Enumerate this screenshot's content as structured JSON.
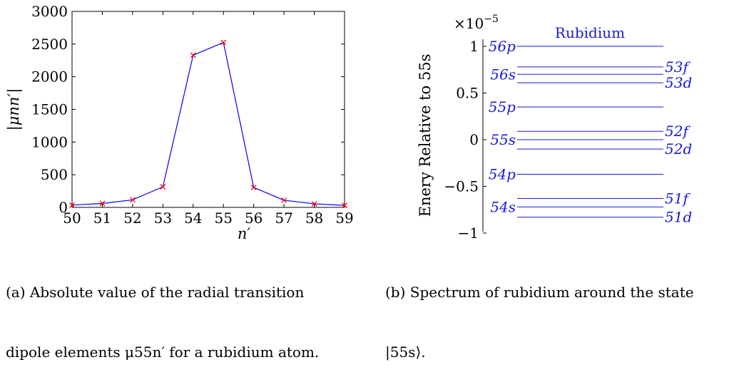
{
  "chart_data": [
    {
      "type": "line",
      "xlabel": "n′",
      "ylabel": "|μnn′|",
      "xlim": [
        50,
        59
      ],
      "ylim": [
        0,
        3000
      ],
      "x_ticks": [
        "50",
        "51",
        "52",
        "53",
        "54",
        "55",
        "56",
        "57",
        "58",
        "59"
      ],
      "y_ticks": [
        "0",
        "500",
        "1000",
        "1500",
        "2000",
        "2500",
        "3000"
      ],
      "grid": false,
      "line_color": "#0000ff",
      "marker_color": "#ff0000",
      "marker": "x",
      "series": [
        {
          "x": [
            50,
            51,
            52,
            53,
            54,
            55,
            56,
            57,
            58,
            59
          ],
          "values": [
            35,
            60,
            115,
            315,
            2330,
            2525,
            305,
            110,
            55,
            30
          ]
        }
      ]
    },
    {
      "type": "energy-levels",
      "title": "Rubidium",
      "ylabel": "Enery Relative to 55s",
      "exponent_label": "×10",
      "exponent_power": "−5",
      "ylim": [
        -1,
        1.1
      ],
      "y_ticks": [
        "1",
        "0.5",
        "0",
        "−0.5",
        "−1"
      ],
      "y_tick_values": [
        1,
        0.5,
        0,
        -0.5,
        -1
      ],
      "line_color": "#1a1ad8",
      "levels": [
        {
          "label": "56p",
          "energy": 1.0,
          "side": "left"
        },
        {
          "label": "53f",
          "energy": 0.78,
          "side": "right"
        },
        {
          "label": "56s",
          "energy": 0.7,
          "side": "left"
        },
        {
          "label": "53d",
          "energy": 0.61,
          "side": "right"
        },
        {
          "label": "55p",
          "energy": 0.35,
          "side": "left"
        },
        {
          "label": "52f",
          "energy": 0.09,
          "side": "right"
        },
        {
          "label": "55s",
          "energy": 0.0,
          "side": "left"
        },
        {
          "label": "52d",
          "energy": -0.1,
          "side": "right"
        },
        {
          "label": "54p",
          "energy": -0.37,
          "side": "left"
        },
        {
          "label": "51f",
          "energy": -0.63,
          "side": "right"
        },
        {
          "label": "54s",
          "energy": -0.72,
          "side": "left"
        },
        {
          "label": "51d",
          "energy": -0.83,
          "side": "right"
        }
      ]
    }
  ],
  "captions": {
    "a_line1": "(a) Absolute value of the radial transition",
    "a_line2": "dipole elements μ55n′ for a rubidium atom.",
    "b_line1": "(b) Spectrum of rubidium around the state",
    "b_line2": "|55s⟩."
  }
}
